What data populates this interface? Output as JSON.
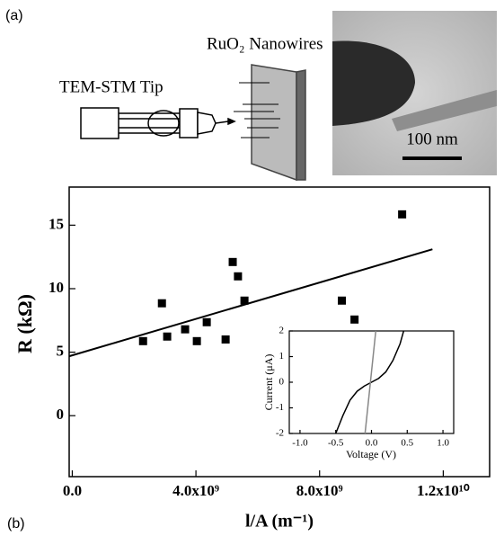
{
  "figure": {
    "panel_a": "(a)",
    "panel_b": "(b)",
    "tip_label": "TEM-STM Tip",
    "nanowire_label": "RuO₂ Nanowires",
    "scale_bar": "100 nm"
  },
  "chart_data": [
    {
      "type": "scatter",
      "xlabel": "l/A (m⁻¹)",
      "ylabel": "R (kΩ)",
      "xlim": [
        -100000000,
        13500000000
      ],
      "ylim": [
        -4.8,
        18
      ],
      "xticks": [
        {
          "value": 0,
          "label": "0.0"
        },
        {
          "value": 4000000000,
          "label": "4.0x10⁹"
        },
        {
          "value": 8000000000,
          "label": "8.0x10⁹"
        },
        {
          "value": 12000000000,
          "label": "1.2x10¹⁰"
        }
      ],
      "yticks": [
        0,
        5,
        10,
        15
      ],
      "series": [
        {
          "type": "scatter",
          "color": "#000000",
          "x": [
            2290000000,
            2900000000,
            3070000000,
            3650000000,
            4030000000,
            4350000000,
            4960000000,
            5190000000,
            5360000000,
            5570000000,
            8720000000,
            9130000000,
            10670000000
          ],
          "values": [
            5.87,
            8.85,
            6.23,
            6.8,
            5.87,
            7.36,
            6.0,
            12.1,
            10.97,
            9.06,
            9.06,
            7.57,
            15.85
          ]
        },
        {
          "type": "line",
          "color": "#000000",
          "x": [
            -100000000,
            11650000000
          ],
          "values": [
            4.68,
            13.1
          ]
        }
      ]
    },
    {
      "type": "line",
      "xlabel": "Voltage (V)",
      "ylabel": "Current (μA)",
      "xlim": [
        -1.15,
        1.15
      ],
      "ylim": [
        -2,
        2
      ],
      "xticks": [
        {
          "value": -1,
          "label": "-1.0"
        },
        {
          "value": -0.5,
          "label": "-0.5"
        },
        {
          "value": 0,
          "label": "0.0"
        },
        {
          "value": 0.5,
          "label": "0.5"
        },
        {
          "value": 1,
          "label": "1.0"
        }
      ],
      "yticks": [
        -2,
        -1,
        0,
        1,
        2
      ],
      "series": [
        {
          "type": "line",
          "color": "#000000",
          "x": [
            -0.5,
            -0.4,
            -0.3,
            -0.2,
            -0.1,
            0,
            0.1,
            0.2,
            0.3,
            0.4,
            0.45
          ],
          "values": [
            -2,
            -1.3,
            -0.7,
            -0.35,
            -0.15,
            0,
            0.15,
            0.4,
            0.85,
            1.5,
            2
          ]
        },
        {
          "type": "line",
          "color": "#888888",
          "x": [
            -0.09,
            0.06
          ],
          "values": [
            -2,
            2
          ]
        }
      ]
    }
  ]
}
